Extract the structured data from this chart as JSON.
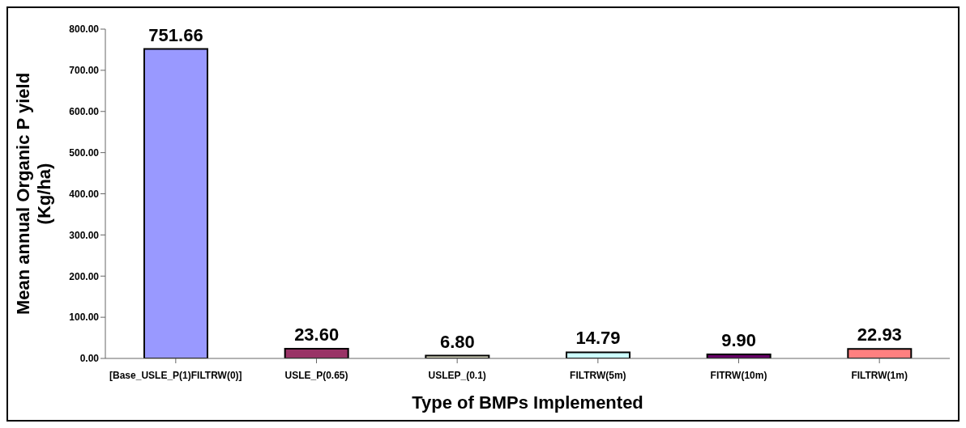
{
  "chart_data": {
    "type": "bar",
    "xlabel": "Type of BMPs Implemented",
    "ylabel": "Mean annual Organic P yield (Kg/ha)",
    "categories": [
      "[Base_USLE_P(1)FILTRW(0)]",
      "USLE_P(0.65)",
      "USLEP_(0.1)",
      "FILTRW(5m)",
      "FITRW(10m)",
      "FILTRW(1m)"
    ],
    "values": [
      751.66,
      23.6,
      6.8,
      14.79,
      9.9,
      22.93
    ],
    "value_labels": [
      "751.66",
      "23.60",
      "6.80",
      "14.79",
      "9.90",
      "22.93"
    ],
    "colors": [
      "#9999ff",
      "#993366",
      "#e6e6cc",
      "#ccffff",
      "#660066",
      "#ff8080"
    ],
    "ylim": [
      0,
      800
    ],
    "yticks": [
      {
        "value": 0,
        "label": "0.00"
      },
      {
        "value": 100,
        "label": "100.00"
      },
      {
        "value": 200,
        "label": "200.00"
      },
      {
        "value": 300,
        "label": "300.00"
      },
      {
        "value": 400,
        "label": "400.00"
      },
      {
        "value": 500,
        "label": "500.00"
      },
      {
        "value": 600,
        "label": "600.00"
      },
      {
        "value": 700,
        "label": "700.00"
      },
      {
        "value": 800,
        "label": "800.00"
      }
    ],
    "grid": false
  }
}
